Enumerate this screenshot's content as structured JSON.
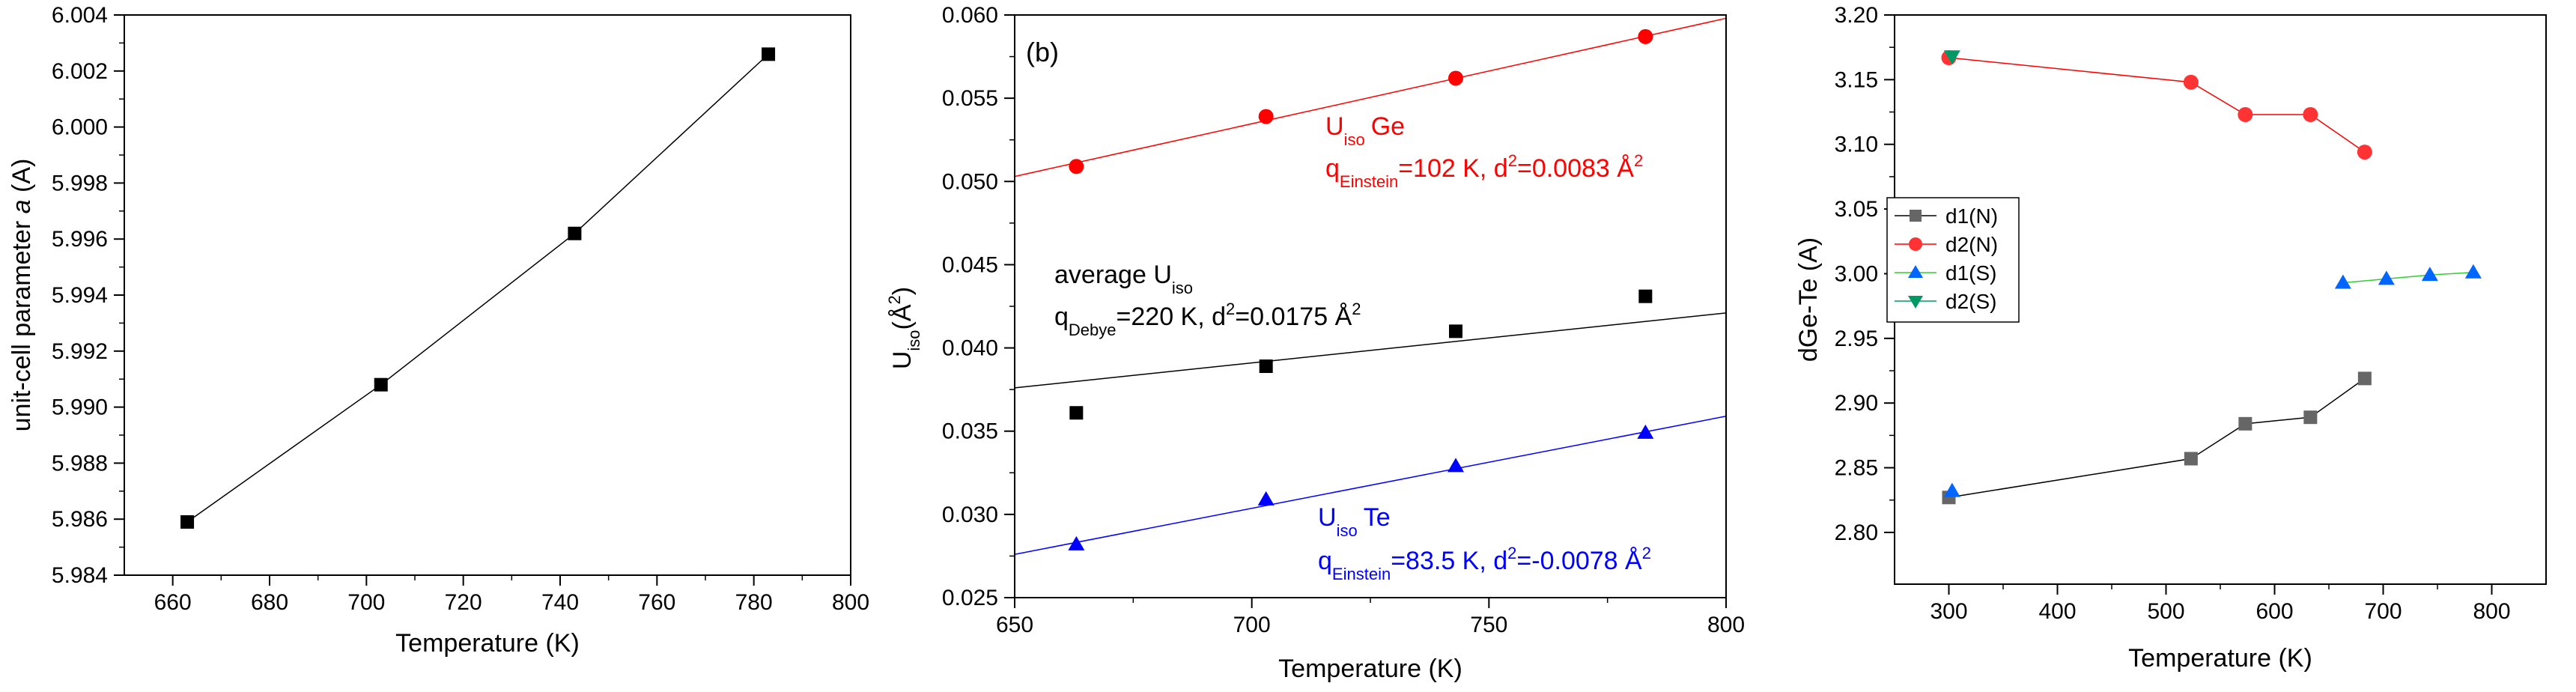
{
  "chart_data": [
    {
      "panel": "a",
      "type": "line",
      "title": "",
      "xlabel": "Temperature (K)",
      "ylabel_text": "unit-cell parameter ",
      "ylabel_italic": "a",
      "ylabel_unit": " (A)",
      "xlim": [
        650,
        800
      ],
      "ylim": [
        5.984,
        6.004
      ],
      "xticks": [
        660,
        680,
        700,
        720,
        740,
        760,
        780,
        800
      ],
      "xtick_labels": [
        "660",
        "680",
        "700",
        "720",
        "740",
        "760",
        "780",
        "800"
      ],
      "yticks": [
        5.984,
        5.986,
        5.988,
        5.99,
        5.992,
        5.994,
        5.996,
        5.998,
        6.0,
        6.002,
        6.004
      ],
      "ytick_labels": [
        "5.984",
        "5.986",
        "5.988",
        "5.990",
        "5.992",
        "5.994",
        "5.996",
        "5.998",
        "6.000",
        "6.002",
        "6.004"
      ],
      "grid": false,
      "series": [
        {
          "name": "a",
          "x": [
            663,
            703,
            743,
            783
          ],
          "y": [
            5.9859,
            5.9908,
            5.9962,
            6.0026
          ],
          "color": "#000000",
          "marker": "square",
          "line": true
        }
      ]
    },
    {
      "panel": "b",
      "type": "scatter",
      "panel_label": "(b)",
      "xlabel": "Temperature (K)",
      "ylabel_main": "U",
      "ylabel_sub": "iso",
      "ylabel_unit": "(Å",
      "ylabel_sup": "2",
      "ylabel_close": ")",
      "xlim": [
        650,
        800
      ],
      "ylim": [
        0.025,
        0.06
      ],
      "xticks": [
        650,
        700,
        750,
        800
      ],
      "xtick_labels": [
        "650",
        "700",
        "750",
        "800"
      ],
      "yticks": [
        0.025,
        0.03,
        0.035,
        0.04,
        0.045,
        0.05,
        0.055,
        0.06
      ],
      "ytick_labels": [
        "0.025",
        "0.030",
        "0.035",
        "0.040",
        "0.045",
        "0.050",
        "0.055",
        "0.060"
      ],
      "grid": false,
      "series": [
        {
          "name": "Uiso Ge",
          "x": [
            663,
            703,
            743,
            783
          ],
          "y": [
            0.0509,
            0.0539,
            0.0562,
            0.0587
          ],
          "color": "#ff0000",
          "marker": "circle",
          "fit": [
            [
              650,
              0.0503
            ],
            [
              800,
              0.0598
            ]
          ]
        },
        {
          "name": "average Uiso",
          "x": [
            663,
            703,
            743,
            783
          ],
          "y": [
            0.0361,
            0.0389,
            0.041,
            0.0431
          ],
          "color": "#000000",
          "marker": "square",
          "fit": [
            [
              650,
              0.0376
            ],
            [
              800,
              0.0421
            ]
          ]
        },
        {
          "name": "Uiso Te",
          "x": [
            663,
            703,
            743,
            783
          ],
          "y": [
            0.0282,
            0.0309,
            0.0329,
            0.0349
          ],
          "color": "#0000ff",
          "marker": "triangle",
          "fit": [
            [
              650,
              0.0276
            ],
            [
              800,
              0.0359
            ]
          ]
        }
      ],
      "annotations": {
        "ge_title_main": "U",
        "ge_title_sub": "iso",
        "ge_title_rest": "Ge",
        "ge_fit_q": "q",
        "ge_fit_sub": "Einstein",
        "ge_fit_rest": "=102 K, d",
        "ge_fit_sup": "2",
        "ge_fit_end": "=0.0083 Å",
        "ge_fit_sup2": "2",
        "avg_title_main": "average U",
        "avg_title_sub": "iso",
        "avg_fit_q": "q",
        "avg_fit_sub": "Debye",
        "avg_fit_rest": "=220 K, d",
        "avg_fit_sup": "2",
        "avg_fit_end": "=0.0175 Å",
        "avg_fit_sup2": "2",
        "te_title_main": "U",
        "te_title_sub": "iso",
        "te_title_rest": "Te",
        "te_fit_q": "q",
        "te_fit_sub": "Einstein",
        "te_fit_rest": "=83.5 K, d",
        "te_fit_sup": "2",
        "te_fit_end": "=-0.0078 Å",
        "te_fit_sup2": "2"
      },
      "colors": {
        "ge": "#ff0000",
        "avg": "#000000",
        "te": "#0000ff"
      }
    },
    {
      "panel": "c",
      "type": "line",
      "title": "",
      "xlabel": "Temperature (K)",
      "ylabel": "dGe-Te (A)",
      "xlim": [
        250,
        850
      ],
      "ylim": [
        2.76,
        3.2
      ],
      "xticks": [
        300,
        400,
        500,
        600,
        700,
        800
      ],
      "xtick_labels": [
        "300",
        "400",
        "500",
        "600",
        "700",
        "800"
      ],
      "yticks": [
        2.8,
        2.85,
        2.9,
        2.95,
        3.0,
        3.05,
        3.1,
        3.15,
        3.2
      ],
      "ytick_labels": [
        "2.80",
        "2.85",
        "2.90",
        "2.95",
        "3.00",
        "3.05",
        "3.10",
        "3.15",
        "3.20"
      ],
      "grid": false,
      "legend": "top-left",
      "series": [
        {
          "name": "d1(N)",
          "x": [
            300,
            523,
            573,
            633,
            683
          ],
          "y": [
            2.827,
            2.857,
            2.884,
            2.889,
            2.919
          ],
          "color": "#666666",
          "line_color": "#000000",
          "marker": "square"
        },
        {
          "name": "d2(N)",
          "x": [
            300,
            523,
            573,
            633,
            683
          ],
          "y": [
            3.167,
            3.148,
            3.123,
            3.123,
            3.094
          ],
          "color": "#ff3333",
          "line_color": "#ff0000",
          "marker": "circle"
        },
        {
          "name": "d1(S)",
          "x": [
            303,
            663,
            703,
            743,
            783
          ],
          "y": [
            2.832,
            2.993,
            2.996,
            2.999,
            3.001
          ],
          "color": "#0066ff",
          "line_color": "#33cc33",
          "marker": "triangle",
          "line_from": 1
        },
        {
          "name": "d2(S)",
          "x": [
            303
          ],
          "y": [
            3.168
          ],
          "color": "#009966",
          "line_color": "#009966",
          "marker": "triangle-down"
        }
      ]
    }
  ]
}
